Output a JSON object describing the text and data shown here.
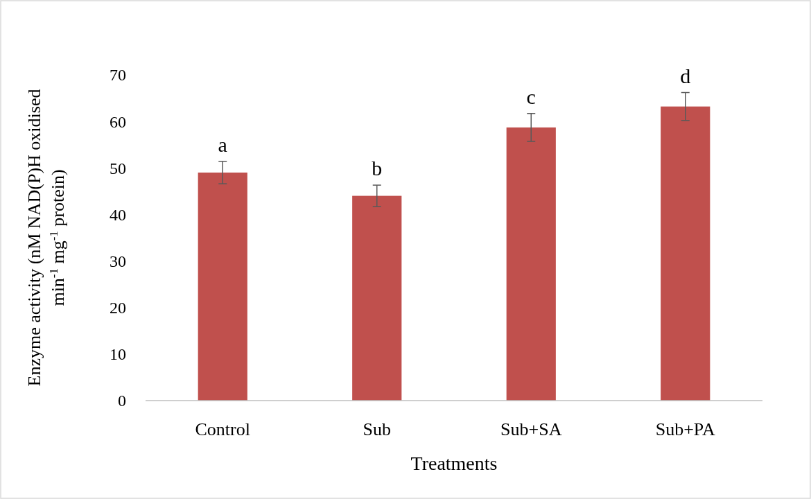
{
  "chart_data": {
    "type": "bar",
    "xlabel": "Treatments",
    "ylabel": "Enzyme activity (nM NAD(P)H oxidised min$^{-1}$ mg$^{-1}$ protein)",
    "categories": [
      "Control",
      "Sub",
      "Sub+SA",
      "Sub+PA"
    ],
    "values": [
      49,
      44,
      58.7,
      63.2
    ],
    "errors": [
      2.4,
      2.3,
      3,
      3
    ],
    "color": "#c0504d",
    "ylim": [
      0,
      70
    ],
    "yticks": [
      0,
      10,
      20,
      30,
      40,
      50,
      60,
      70
    ],
    "grid": false,
    "annotations": [
      "a",
      "b",
      "c",
      "d"
    ]
  }
}
